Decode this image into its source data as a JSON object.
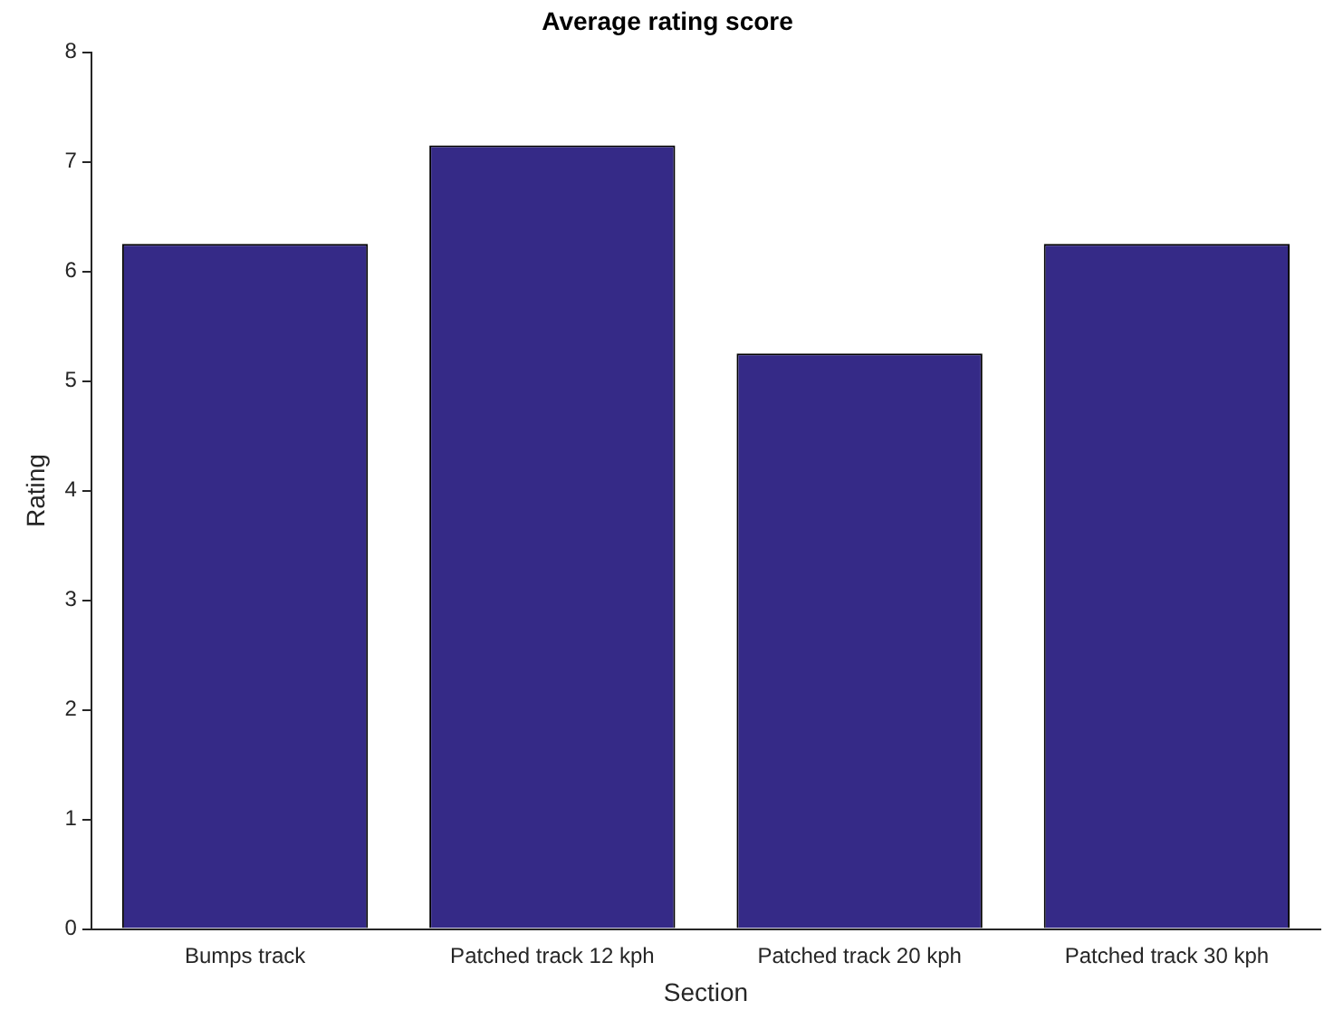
{
  "chart_data": {
    "type": "bar",
    "title": "Average rating score",
    "xlabel": "Section",
    "ylabel": "Rating",
    "categories": [
      "Bumps track",
      "Patched track 12 kph",
      "Patched track 20 kph",
      "Patched track 30 kph"
    ],
    "values": [
      6.25,
      7.15,
      5.25,
      6.25
    ],
    "color": "#352a87",
    "ylim": [
      0,
      8
    ],
    "yticks": [
      0,
      1,
      2,
      3,
      4,
      5,
      6,
      7,
      8
    ],
    "grid": false,
    "legend": false
  }
}
